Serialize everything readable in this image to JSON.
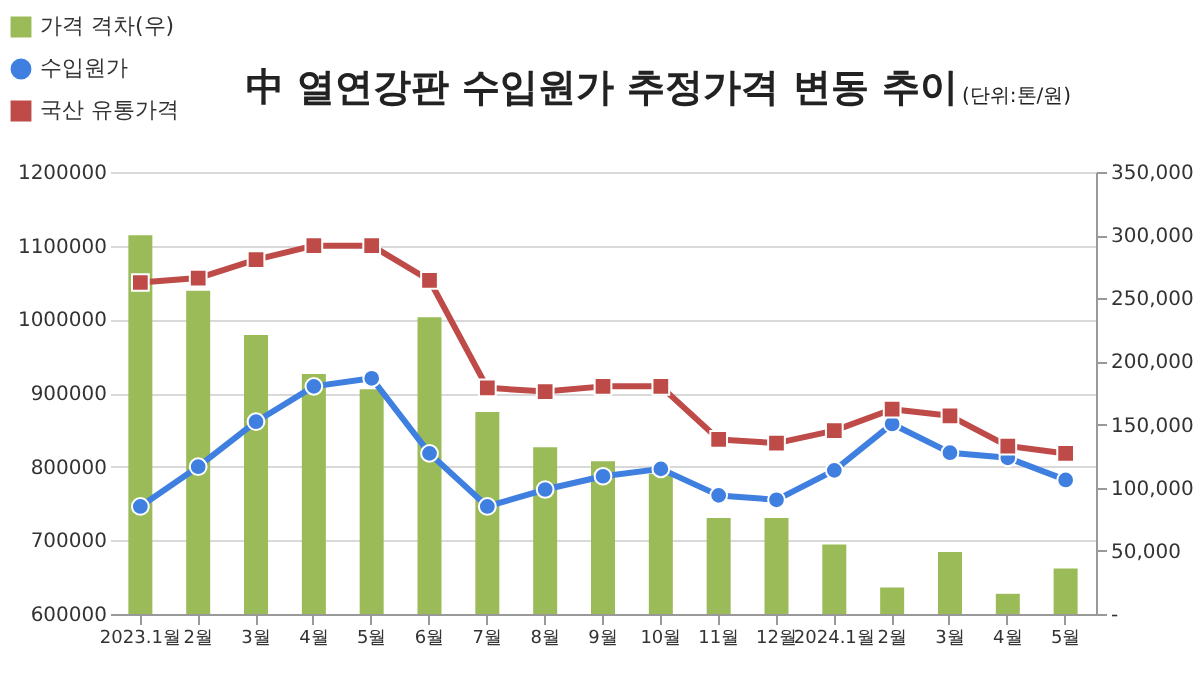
{
  "chart_data": {
    "type": "line",
    "title": "中 열연강판 수입원가 추정가격 변동 추이",
    "subtitle": "(단위:톤/원)",
    "categories": [
      "2023.1월",
      "2월",
      "3월",
      "4월",
      "5월",
      "6월",
      "7월",
      "8월",
      "9월",
      "10월",
      "11월",
      "12월",
      "2024.1월",
      "2월",
      "3월",
      "4월",
      "5월"
    ],
    "series": [
      {
        "name": "가격 격차(우)",
        "type": "bar",
        "axis": "y2",
        "color": "#9bbb59",
        "values": [
          300000,
          256000,
          221000,
          190000,
          178000,
          235000,
          160000,
          132000,
          121000,
          111000,
          76000,
          76000,
          55000,
          21000,
          49000,
          16000,
          36000
        ]
      },
      {
        "name": "수입원가",
        "marker": "circle",
        "color": "#3f7fe0",
        "values": [
          746000,
          800000,
          861000,
          909000,
          920000,
          818000,
          746000,
          769000,
          787000,
          797000,
          761000,
          755000,
          795000,
          858000,
          819000,
          812000,
          782000
        ]
      },
      {
        "name": "국산 유통가격",
        "marker": "square",
        "color": "#be4b48",
        "values": [
          1050000,
          1056000,
          1081000,
          1100000,
          1100000,
          1053000,
          907000,
          902000,
          909000,
          909000,
          837000,
          832000,
          849000,
          878000,
          869000,
          828000,
          818000
        ]
      }
    ],
    "ylim": [
      600000,
      1200000
    ],
    "yticks": [
      600000,
      700000,
      800000,
      900000,
      1000000,
      1100000,
      1200000
    ],
    "y2lim": [
      0,
      350000
    ],
    "y2ticks": [
      {
        "value": 0,
        "label": "-"
      },
      {
        "value": 50000,
        "label": "50,000"
      },
      {
        "value": 100000,
        "label": "100,000"
      },
      {
        "value": 150000,
        "label": "150,000"
      },
      {
        "value": 200000,
        "label": "200,000"
      },
      {
        "value": 250000,
        "label": "250,000"
      },
      {
        "value": 300000,
        "label": "300,000"
      },
      {
        "value": 350000,
        "label": "350,000"
      }
    ],
    "grid": "y",
    "legend": "top left"
  }
}
